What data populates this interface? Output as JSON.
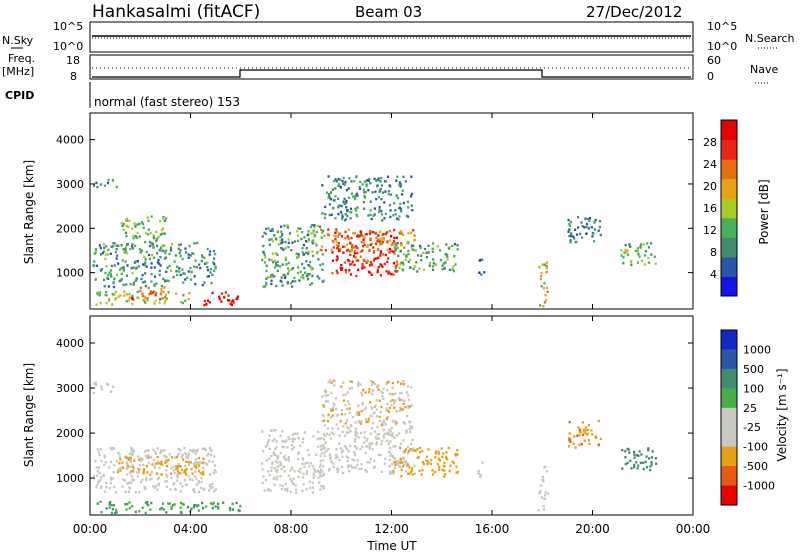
{
  "header": {
    "station": "Hankasalmi (fitACF)",
    "beam": "Beam 03",
    "date": "27/Dec/2012"
  },
  "top_panels": {
    "nsky_label": "N.Sky",
    "nsky_ticks": [
      "10^5",
      "10^0"
    ],
    "nsearch_label": "N.Search",
    "nsearch_ticks": [
      "10^5",
      "10^0"
    ],
    "freq_label_1": "Freq.",
    "freq_label_2": "[MHz]",
    "freq_ticks": [
      "18",
      "8"
    ],
    "nave_label": "Nave",
    "nave_ticks": [
      "60",
      "0"
    ],
    "cpid_label": "CPID",
    "cpid_text": "normal (fast stereo) 153"
  },
  "colors": {
    "power": [
      "#1414e6",
      "#2a55a8",
      "#3f8c6e",
      "#46b05a",
      "#a6cc28",
      "#e6a414",
      "#e66e14",
      "#e62814",
      "#e60000"
    ],
    "velocity": [
      "#e60000",
      "#e65a14",
      "#e6a014",
      "#c8c8c0",
      "#c8c8c0",
      "#46b046",
      "#3f8c6e",
      "#2a55a8",
      "#1428c8"
    ]
  },
  "chart_data": [
    {
      "type": "heatmap",
      "title": "",
      "xlabel": "",
      "ylabel": "Slant Range [km]",
      "xlim": [
        "00:00",
        "24:00"
      ],
      "ylim": [
        180,
        4600
      ],
      "yticks": [
        "4000",
        "3000",
        "2000",
        "1000"
      ],
      "colorbar": {
        "label": "Power [dB]",
        "range": [
          0,
          32
        ],
        "ticks": [
          "28",
          "24",
          "20",
          "16",
          "12",
          "8",
          "4"
        ]
      },
      "regions": [
        {
          "t0": 0.1,
          "t1": 5.0,
          "r0": 700,
          "r1": 1700,
          "v": 10
        },
        {
          "t0": 1.2,
          "t1": 3.0,
          "r0": 1500,
          "r1": 2300,
          "v": 13
        },
        {
          "t0": 0.1,
          "t1": 1.1,
          "r0": 2950,
          "r1": 3150,
          "v": 10
        },
        {
          "t0": 0.2,
          "t1": 4.0,
          "r0": 300,
          "r1": 600,
          "v": 16
        },
        {
          "t0": 1.6,
          "t1": 3.0,
          "r0": 400,
          "r1": 700,
          "v": 24
        },
        {
          "t0": 4.4,
          "t1": 5.9,
          "r0": 260,
          "r1": 600,
          "v": 30
        },
        {
          "t0": 6.8,
          "t1": 9.3,
          "r0": 700,
          "r1": 2100,
          "v": 11
        },
        {
          "t0": 9.1,
          "t1": 12.9,
          "r0": 1500,
          "r1": 2000,
          "v": 22
        },
        {
          "t0": 9.6,
          "t1": 12.3,
          "r0": 950,
          "r1": 1950,
          "v": 28
        },
        {
          "t0": 9.2,
          "t1": 12.8,
          "r0": 2200,
          "r1": 3200,
          "v": 9
        },
        {
          "t0": 12.0,
          "t1": 14.6,
          "r0": 1050,
          "r1": 1700,
          "v": 12
        },
        {
          "t0": 17.8,
          "t1": 18.2,
          "r0": 250,
          "r1": 1300,
          "v": 18
        },
        {
          "t0": 19.0,
          "t1": 20.3,
          "r0": 1700,
          "r1": 2300,
          "v": 8
        },
        {
          "t0": 21.1,
          "t1": 22.5,
          "r0": 1200,
          "r1": 1700,
          "v": 13
        },
        {
          "t0": 15.4,
          "t1": 15.7,
          "r0": 900,
          "r1": 1400,
          "v": 5
        }
      ]
    },
    {
      "type": "heatmap",
      "title": "",
      "xlabel": "Time UT",
      "ylabel": "Slant Range [km]",
      "xlim": [
        "00:00",
        "24:00"
      ],
      "ylim": [
        180,
        4600
      ],
      "xticks": [
        "00:00",
        "04:00",
        "08:00",
        "12:00",
        "16:00",
        "20:00",
        "00:00"
      ],
      "yticks": [
        "4000",
        "3000",
        "2000",
        "1000"
      ],
      "colorbar": {
        "label": "Velocity [m s⁻¹]",
        "ticks": [
          "1000",
          "500",
          "100",
          "25",
          "-25",
          "-100",
          "-500",
          "-1000"
        ]
      },
      "regions": [
        {
          "t0": 0.1,
          "t1": 5.0,
          "r0": 700,
          "r1": 1700,
          "v": 0
        },
        {
          "t0": 1.0,
          "t1": 4.5,
          "r0": 1100,
          "r1": 1500,
          "v": -150
        },
        {
          "t0": 6.8,
          "t1": 9.3,
          "r0": 700,
          "r1": 2100,
          "v": 0
        },
        {
          "t0": 9.1,
          "t1": 12.9,
          "r0": 1100,
          "r1": 2200,
          "v": 0
        },
        {
          "t0": 9.2,
          "t1": 12.8,
          "r0": 2200,
          "r1": 3200,
          "v": -80
        },
        {
          "t0": 12.0,
          "t1": 14.6,
          "r0": 1050,
          "r1": 1700,
          "v": -200
        },
        {
          "t0": 0.1,
          "t1": 1.0,
          "r0": 2900,
          "r1": 3150,
          "v": 0
        },
        {
          "t0": 0.2,
          "t1": 6.0,
          "r0": 250,
          "r1": 500,
          "v": 80
        },
        {
          "t0": 17.8,
          "t1": 18.2,
          "r0": 250,
          "r1": 1300,
          "v": -60
        },
        {
          "t0": 19.0,
          "t1": 20.3,
          "r0": 1700,
          "r1": 2300,
          "v": -400
        },
        {
          "t0": 21.1,
          "t1": 22.5,
          "r0": 1200,
          "r1": 1700,
          "v": 300
        },
        {
          "t0": 15.4,
          "t1": 15.7,
          "r0": 900,
          "r1": 1400,
          "v": 0
        }
      ]
    }
  ]
}
